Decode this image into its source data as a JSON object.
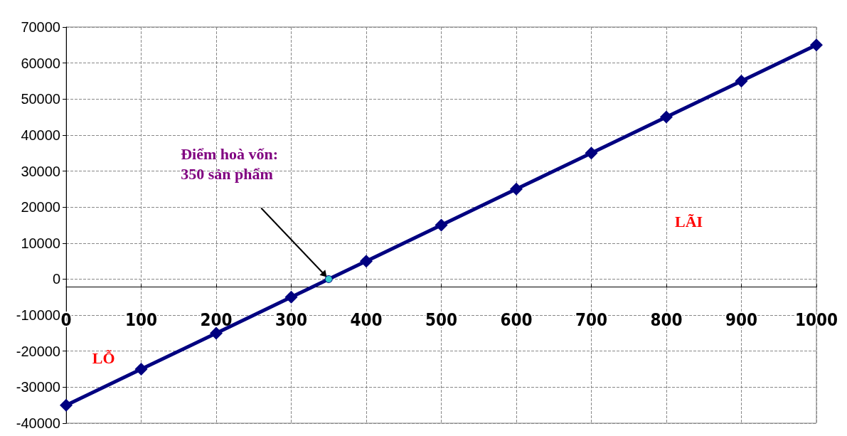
{
  "chart_data": {
    "type": "line",
    "x": [
      0,
      100,
      200,
      300,
      400,
      500,
      600,
      700,
      800,
      900,
      1000
    ],
    "series": [
      {
        "color": "#000080",
        "values": [
          -35000,
          -25000,
          -15000,
          -5000,
          5000,
          15000,
          25000,
          35000,
          45000,
          55000,
          65000
        ]
      }
    ],
    "xlim": [
      0,
      1000
    ],
    "xticks": [
      0,
      100,
      200,
      300,
      400,
      500,
      600,
      700,
      800,
      900,
      1000
    ],
    "ylim": [
      -40000,
      70000
    ],
    "yticks": [
      -40000,
      -30000,
      -20000,
      -10000,
      0,
      10000,
      20000,
      30000,
      40000,
      50000,
      60000,
      70000
    ],
    "grid": true,
    "marker": "diamond",
    "line_style": "solid",
    "annotations": [
      "Điểm hoà vốn:\n350 sản phẩm",
      "LỖ",
      "LÃI"
    ]
  }
}
